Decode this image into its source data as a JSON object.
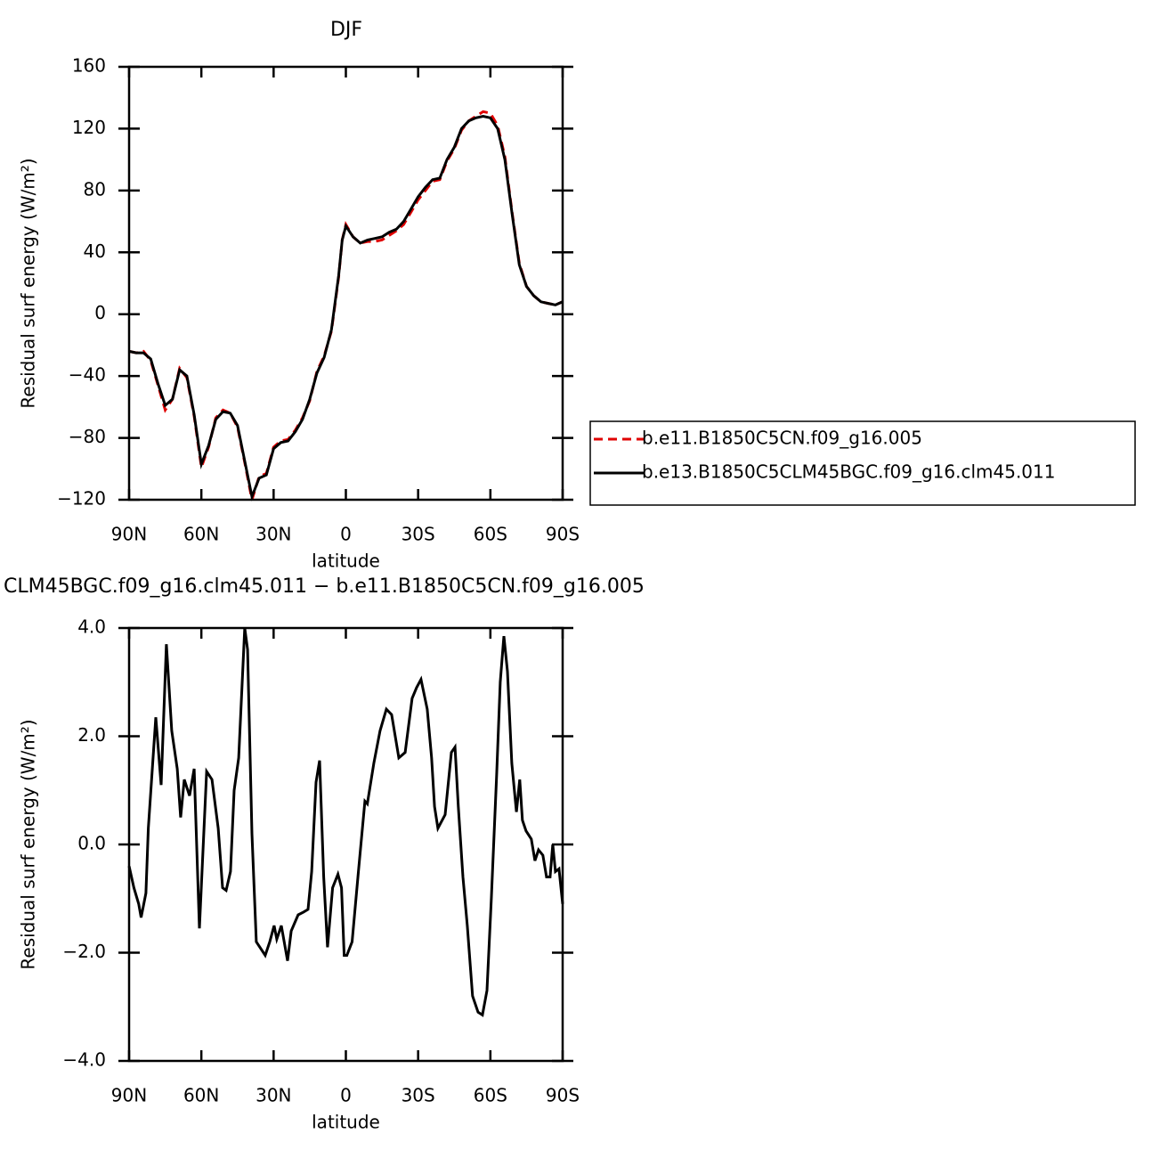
{
  "chart_data": [
    {
      "type": "line",
      "title": "DJF",
      "xlabel": "latitude",
      "ylabel": "Residual surf energy (W/m²)",
      "x": [
        90,
        87,
        84,
        81,
        78,
        75,
        72,
        69,
        66,
        63,
        60,
        57,
        54,
        51,
        48,
        45,
        42,
        39,
        36,
        33,
        30,
        27,
        24,
        21,
        18,
        15,
        12,
        9,
        6,
        3,
        1.5,
        0,
        -3,
        -6,
        -9,
        -12,
        -15,
        -18,
        -21,
        -24,
        -27,
        -30,
        -33,
        -36,
        -39,
        -42,
        -45,
        -48,
        -51,
        -54,
        -57,
        -60,
        -63,
        -66,
        -69,
        -72,
        -75,
        -78,
        -81,
        -84,
        -87,
        -90
      ],
      "series": [
        {
          "name": "b.e11.B1850C5CN.f09_g16.005",
          "color": "#e00000",
          "dashed": true,
          "values": [
            -24,
            -25,
            -24,
            -30,
            -46,
            -62,
            -55,
            -35,
            -41,
            -66,
            -99,
            -86,
            -67,
            -62,
            -64,
            -73,
            -96,
            -120,
            -105,
            -103,
            -86,
            -82,
            -81,
            -75,
            -67,
            -56,
            -37,
            -27,
            -11,
            24,
            48,
            58,
            50,
            46,
            47,
            47,
            48,
            51,
            54,
            58,
            66,
            74,
            80,
            86,
            87,
            99,
            107,
            119,
            125,
            128,
            131,
            130,
            122,
            102,
            66,
            33,
            18,
            12,
            8,
            7,
            6,
            8
          ]
        },
        {
          "name": "b.e13.B1850C5CLM45BGC.f09_g16.clm45.011",
          "color": "#000000",
          "dashed": false,
          "values": [
            -24,
            -25,
            -25,
            -29,
            -45,
            -59,
            -55,
            -36,
            -40,
            -65,
            -97,
            -85,
            -68,
            -63,
            -64,
            -72,
            -95,
            -118,
            -106,
            -104,
            -87,
            -83,
            -82,
            -76,
            -68,
            -55,
            -38,
            -28,
            -10,
            25,
            48,
            57,
            50,
            46,
            48,
            49,
            50,
            53,
            55,
            60,
            68,
            76,
            82,
            87,
            88,
            100,
            108,
            120,
            125,
            127,
            128,
            127,
            120,
            100,
            65,
            32,
            18,
            12,
            8,
            7,
            6,
            8
          ]
        }
      ],
      "xlim": [
        90,
        -90
      ],
      "xticks": [
        {
          "value": 90,
          "label": "90N"
        },
        {
          "value": 60,
          "label": "60N"
        },
        {
          "value": 30,
          "label": "30N"
        },
        0,
        {
          "value": -30,
          "label": "30S"
        },
        {
          "value": -60,
          "label": "60S"
        },
        {
          "value": -90,
          "label": "90S"
        }
      ],
      "ylim": [
        -120,
        160
      ],
      "yticks": [
        {
          "value": -120,
          "label": "−120"
        },
        {
          "value": -80,
          "label": "−80"
        },
        {
          "value": -40,
          "label": "−40"
        },
        0,
        40,
        80,
        120,
        160
      ],
      "legend": "right"
    },
    {
      "type": "line",
      "title": "CLM45BGC.f09_g16.clm45.011 − b.e11.B1850C5CN.f09_g16.005",
      "xlabel": "latitude",
      "ylabel": "Residual surf energy (W/m²)",
      "x": [
        90,
        88,
        86,
        85,
        83,
        82,
        78.9,
        76.7,
        74.5,
        72.3,
        70,
        68.6,
        67.1,
        64.9,
        63,
        60.8,
        57.8,
        55.6,
        53,
        51.2,
        49.7,
        47.9,
        46.4,
        44.5,
        42,
        40.8,
        39,
        37.2,
        33.5,
        31.6,
        29.8,
        28.7,
        26.8,
        24.2,
        22.7,
        19.8,
        17.6,
        15.7,
        14.2,
        12.4,
        10.9,
        9.2,
        7.6,
        5.5,
        3.3,
        1.8,
        0.7,
        -0.4,
        -2.6,
        -5.2,
        -7.9,
        -8.9,
        -11.6,
        -14.2,
        -16.8,
        -19,
        -22,
        -24.6,
        -27.5,
        -29.4,
        -31.2,
        -33.8,
        -35.6,
        -36.8,
        -38.2,
        -41.2,
        -43.8,
        -45.3,
        -46.7,
        -48.6,
        -50.4,
        -52.6,
        -54.9,
        -56.7,
        -58.6,
        -60.4,
        -62.6,
        -64.1,
        -65.6,
        -67.1,
        -68.9,
        -70.8,
        -72.2,
        -73.3,
        -74.8,
        -77,
        -78.5,
        -80,
        -81.8,
        -83.3,
        -84.8,
        -85.9,
        -87,
        -88.5,
        -90
      ],
      "values": [
        -0.4,
        -0.8,
        -1.1,
        -1.35,
        -0.9,
        0.3,
        2.35,
        1.1,
        3.7,
        2.1,
        1.4,
        0.5,
        1.2,
        0.9,
        1.4,
        -1.55,
        1.35,
        1.2,
        0.3,
        -0.8,
        -0.85,
        -0.5,
        1.0,
        1.6,
        4.0,
        3.6,
        0.2,
        -1.8,
        -2.05,
        -1.8,
        -1.5,
        -1.75,
        -1.5,
        -2.15,
        -1.6,
        -1.3,
        -1.25,
        -1.2,
        -0.5,
        1.15,
        1.55,
        -0.6,
        -1.9,
        -0.8,
        -0.55,
        -0.8,
        -2.05,
        -2.05,
        -1.8,
        -0.5,
        0.8,
        0.75,
        1.5,
        2.1,
        2.5,
        2.4,
        1.6,
        1.7,
        2.7,
        2.9,
        3.05,
        2.5,
        1.6,
        0.7,
        0.3,
        0.55,
        1.7,
        1.8,
        0.7,
        -0.6,
        -1.5,
        -2.8,
        -3.1,
        -3.15,
        -2.7,
        -1.0,
        1.3,
        3.0,
        3.85,
        3.2,
        1.5,
        0.6,
        1.2,
        0.45,
        0.25,
        0.1,
        -0.3,
        -0.1,
        -0.2,
        -0.6,
        -0.6,
        0.0,
        -0.5,
        -0.45,
        -1.1
      ],
      "color": "#000000",
      "xlim": [
        90,
        -90
      ],
      "xticks": [
        {
          "value": 90,
          "label": "90N"
        },
        {
          "value": 60,
          "label": "60N"
        },
        {
          "value": 30,
          "label": "30N"
        },
        0,
        {
          "value": -30,
          "label": "30S"
        },
        {
          "value": -60,
          "label": "60S"
        },
        {
          "value": -90,
          "label": "90S"
        }
      ],
      "ylim": [
        -4,
        4
      ],
      "yticks": [
        {
          "value": -4,
          "label": "−4.0"
        },
        {
          "value": -2,
          "label": "−2.0"
        },
        {
          "value": 0,
          "label": "0.0"
        },
        {
          "value": 2,
          "label": "2.0"
        },
        {
          "value": 4,
          "label": "4.0"
        }
      ]
    }
  ]
}
